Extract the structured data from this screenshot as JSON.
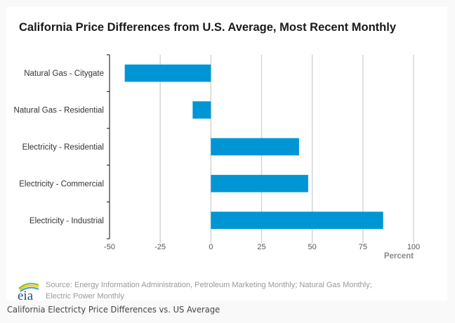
{
  "chart_data": {
    "type": "bar",
    "orientation": "horizontal",
    "title": "California Price Differences from U.S. Average, Most Recent Monthly",
    "categories": [
      "Natural Gas - Citygate",
      "Natural Gas - Residential",
      "Electricity - Residential",
      "Electricity - Commercial",
      "Electricity - Industrial"
    ],
    "values": [
      -42.5,
      -9,
      43.5,
      48,
      85
    ],
    "xlabel": "Percent",
    "ylabel": "",
    "xlim": [
      -50,
      100
    ],
    "xticks": [
      -50,
      -25,
      0,
      25,
      50,
      75,
      100
    ],
    "xtick_labels": [
      "-50",
      "-25",
      "0",
      "25",
      "50",
      "75",
      "100"
    ],
    "grid": "vertical",
    "legend": "none",
    "bar_color": "#0096d6",
    "grid_color": "#d0d0d0"
  },
  "source": {
    "logo_text": "eia",
    "line1": "Source: Energy Information Administration, Petroleum Marketing Monthly; Natural Gas Monthly;",
    "line2": "Electric Power Monthly"
  },
  "caption": "California Electricty Price Differences vs. US Average"
}
